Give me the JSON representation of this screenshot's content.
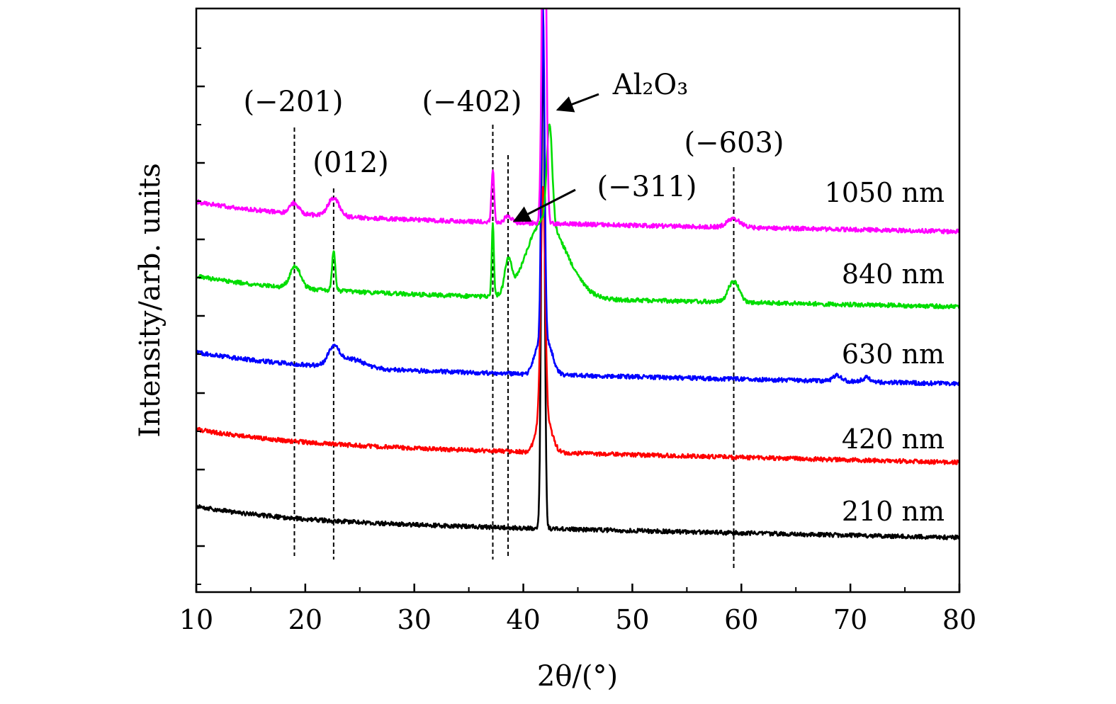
{
  "chart_data": {
    "type": "line",
    "xlabel": "2θ/(°)",
    "ylabel": "Intensity/arb. units",
    "xlim": [
      10,
      80
    ],
    "x_ticks": [
      10,
      20,
      30,
      40,
      50,
      60,
      70,
      80
    ],
    "grid": false,
    "y_tick_labels_shown": false,
    "colors": {
      "210 nm": "#000000",
      "420 nm": "#ff0000",
      "630 nm": "#0000ff",
      "840 nm": "#00dd00",
      "1050 nm": "#ff00ff",
      "dashed_lines": "#000000"
    },
    "series": [
      {
        "name": "210 nm",
        "baseline_start": 715,
        "baseline_end": 759,
        "peaks": [
          [
            41.8,
            0.15,
            712
          ]
        ]
      },
      {
        "name": "420 nm",
        "baseline_start": 606,
        "baseline_end": 653,
        "peaks": [
          [
            41.8,
            0.2,
            330
          ],
          [
            42.2,
            0.5,
            40
          ],
          [
            41.4,
            0.4,
            30
          ]
        ]
      },
      {
        "name": "630 nm",
        "baseline_start": 497,
        "baseline_end": 542,
        "peaks": [
          [
            22.6,
            0.5,
            25
          ],
          [
            24.2,
            1.2,
            12
          ],
          [
            41.8,
            0.15,
            470
          ],
          [
            42.2,
            0.5,
            45
          ],
          [
            41.3,
            0.4,
            30
          ],
          [
            68.8,
            0.4,
            8
          ],
          [
            71.5,
            0.4,
            6
          ]
        ]
      },
      {
        "name": "840 nm",
        "baseline_start": 390,
        "baseline_end": 433,
        "peaks": [
          [
            19.1,
            0.5,
            30
          ],
          [
            22.6,
            0.15,
            55
          ],
          [
            37.2,
            0.1,
            100
          ],
          [
            38.6,
            0.3,
            45
          ],
          [
            42.4,
            0.25,
            140
          ],
          [
            42.6,
            1.8,
            80
          ],
          [
            41.3,
            1.3,
            40
          ],
          [
            59.3,
            0.5,
            30
          ]
        ]
      },
      {
        "name": "1050 nm",
        "baseline_start": 285,
        "baseline_end": 327,
        "peaks": [
          [
            19.0,
            0.4,
            15
          ],
          [
            22.6,
            0.5,
            26
          ],
          [
            37.2,
            0.12,
            75
          ],
          [
            38.6,
            0.3,
            10
          ],
          [
            41.9,
            0.18,
            600
          ],
          [
            59.3,
            0.6,
            12
          ]
        ]
      }
    ],
    "annotations": [
      {
        "id": "a201",
        "text": "(−201)",
        "x": 19.0
      },
      {
        "id": "a012",
        "text": "(012)",
        "x": 22.6
      },
      {
        "id": "a402",
        "text": "(−402)",
        "x": 37.2
      },
      {
        "id": "a311",
        "text": "(−311)",
        "x": 38.6
      },
      {
        "id": "a603",
        "text": "(−603)",
        "x": 59.3
      },
      {
        "id": "aAl2O3",
        "text": "Al₂O₃",
        "x": 41.9
      }
    ]
  }
}
